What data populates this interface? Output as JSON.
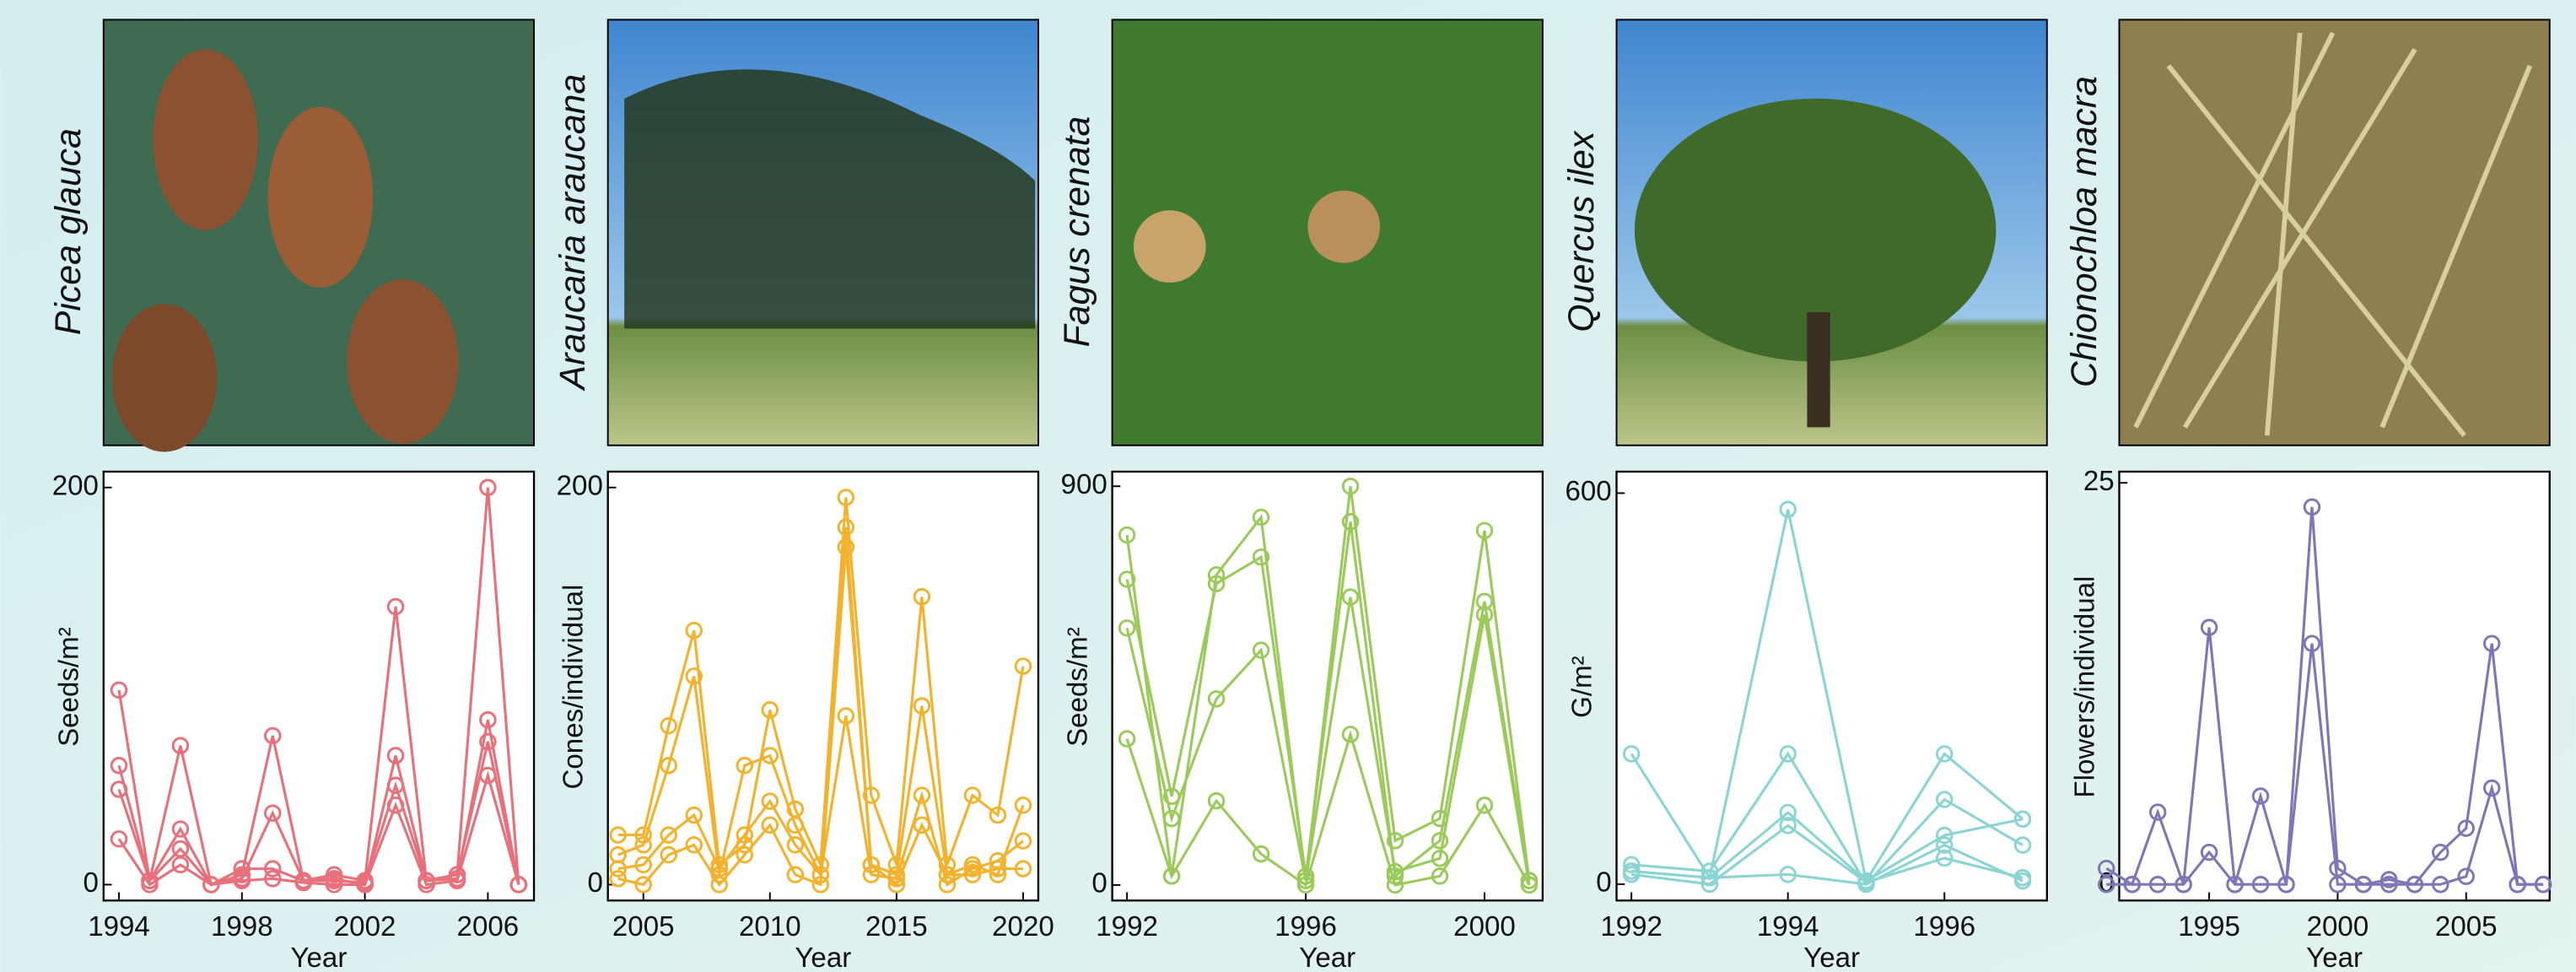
{
  "chart_data": [
    {
      "type": "line",
      "title": "Picea glauca",
      "xlabel": "Year",
      "ylabel": "Seeds/m²",
      "color": "#e8707a",
      "x": [
        1994,
        1995,
        1996,
        1997,
        1998,
        1999,
        2000,
        2001,
        2002,
        2003,
        2004,
        2005,
        2006,
        2007
      ],
      "series": [
        {
          "values": [
            98,
            2,
            70,
            0,
            5,
            75,
            2,
            5,
            2,
            140,
            2,
            5,
            200,
            0
          ]
        },
        {
          "values": [
            60,
            2,
            28,
            0,
            3,
            36,
            2,
            3,
            0,
            65,
            2,
            3,
            83,
            0
          ]
        },
        {
          "values": [
            48,
            2,
            18,
            0,
            8,
            8,
            2,
            2,
            1,
            50,
            2,
            5,
            72,
            0
          ]
        },
        {
          "values": [
            23,
            0,
            10,
            0,
            2,
            3,
            1,
            0,
            0,
            40,
            0,
            2,
            55,
            0
          ]
        }
      ],
      "xlim": [
        1993.5,
        2007.5
      ],
      "ylim": [
        -8,
        208
      ],
      "xticks": [
        1994,
        1998,
        2002,
        2006
      ],
      "yticks": [
        0,
        200
      ]
    },
    {
      "type": "line",
      "title": "Araucaria araucana",
      "xlabel": "Year",
      "ylabel": "Cones/individual",
      "color": "#f4b22c",
      "x": [
        2004,
        2005,
        2006,
        2007,
        2008,
        2009,
        2010,
        2011,
        2012,
        2013,
        2014,
        2015,
        2016,
        2017,
        2018,
        2019,
        2020
      ],
      "series": [
        {
          "values": [
            25,
            25,
            80,
            128,
            10,
            20,
            88,
            38,
            10,
            195,
            45,
            10,
            145,
            10,
            45,
            35,
            110
          ]
        },
        {
          "values": [
            15,
            20,
            60,
            105,
            5,
            60,
            65,
            30,
            5,
            180,
            10,
            5,
            90,
            5,
            10,
            5,
            40
          ]
        },
        {
          "values": [
            8,
            10,
            25,
            35,
            8,
            25,
            42,
            20,
            5,
            85,
            5,
            3,
            45,
            0,
            8,
            12,
            22
          ]
        },
        {
          "values": [
            3,
            0,
            15,
            20,
            0,
            15,
            30,
            5,
            0,
            170,
            10,
            0,
            30,
            5,
            5,
            8,
            8
          ]
        }
      ],
      "xlim": [
        2003.6,
        2020.6
      ],
      "ylim": [
        -8,
        208
      ],
      "xticks": [
        2005,
        2010,
        2015,
        2020
      ],
      "yticks": [
        0,
        200
      ]
    },
    {
      "type": "line",
      "title": "Fagus crenata",
      "xlabel": "Year",
      "ylabel": "Seeds/m²",
      "color": "#9acb5a",
      "x": [
        1992,
        1993,
        1994,
        1995,
        1996,
        1997,
        1998,
        1999,
        2000,
        2001
      ],
      "series": [
        {
          "values": [
            790,
            20,
            700,
            830,
            10,
            900,
            100,
            150,
            800,
            10
          ]
        },
        {
          "values": [
            690,
            200,
            680,
            740,
            20,
            820,
            20,
            100,
            640,
            10
          ]
        },
        {
          "values": [
            580,
            150,
            420,
            530,
            10,
            650,
            30,
            60,
            610,
            0
          ]
        },
        {
          "values": [
            330,
            20,
            190,
            70,
            0,
            340,
            0,
            20,
            180,
            0
          ]
        }
      ],
      "xlim": [
        1991.67,
        2001.3
      ],
      "ylim": [
        -35,
        933
      ],
      "xticks": [
        1992,
        1996,
        2000
      ],
      "yticks": [
        0,
        900
      ]
    },
    {
      "type": "line",
      "title": "Quercus ilex",
      "xlabel": "Year",
      "ylabel": "G/m²",
      "color": "#8ad4d4",
      "x": [
        1992,
        1993,
        1994,
        1995,
        1996,
        1997
      ],
      "series": [
        {
          "values": [
            200,
            10,
            575,
            5,
            200,
            100
          ]
        },
        {
          "values": [
            30,
            20,
            200,
            0,
            130,
            60
          ]
        },
        {
          "values": [
            20,
            10,
            110,
            5,
            75,
            100
          ]
        },
        {
          "values": [
            15,
            0,
            90,
            3,
            40,
            10
          ]
        },
        {
          "values": [
            20,
            10,
            15,
            0,
            60,
            5
          ]
        }
      ],
      "xlim": [
        1991.81,
        1997.31
      ],
      "ylim": [
        -25,
        633
      ],
      "xticks": [
        1992,
        1994,
        1996
      ],
      "yticks": [
        0,
        600
      ]
    },
    {
      "type": "line",
      "title": "Chionochloa macra",
      "xlabel": "Year",
      "ylabel": "Flowers/individual",
      "color": "#7d77b7",
      "x": [
        1991,
        1992,
        1993,
        1994,
        1995,
        1996,
        1997,
        1998,
        1999,
        2000,
        2001,
        2002,
        2003,
        2004,
        2005,
        2006,
        2007,
        2008
      ],
      "series": [
        {
          "values": [
            1,
            0,
            4.5,
            0,
            16,
            0,
            5.5,
            0,
            23.5,
            1,
            0,
            0,
            0,
            2,
            3.5,
            15,
            0,
            0
          ]
        },
        {
          "values": [
            0,
            0,
            0,
            0,
            2,
            0,
            0,
            0,
            15,
            0,
            0,
            0.3,
            0,
            0,
            0.5,
            6,
            0,
            0
          ]
        }
      ],
      "xlim": [
        1991.5,
        2008.25
      ],
      "ylim": [
        -1,
        25.7
      ],
      "xticks": [
        1995,
        2000,
        2005
      ],
      "yticks": [
        0,
        25
      ]
    }
  ]
}
